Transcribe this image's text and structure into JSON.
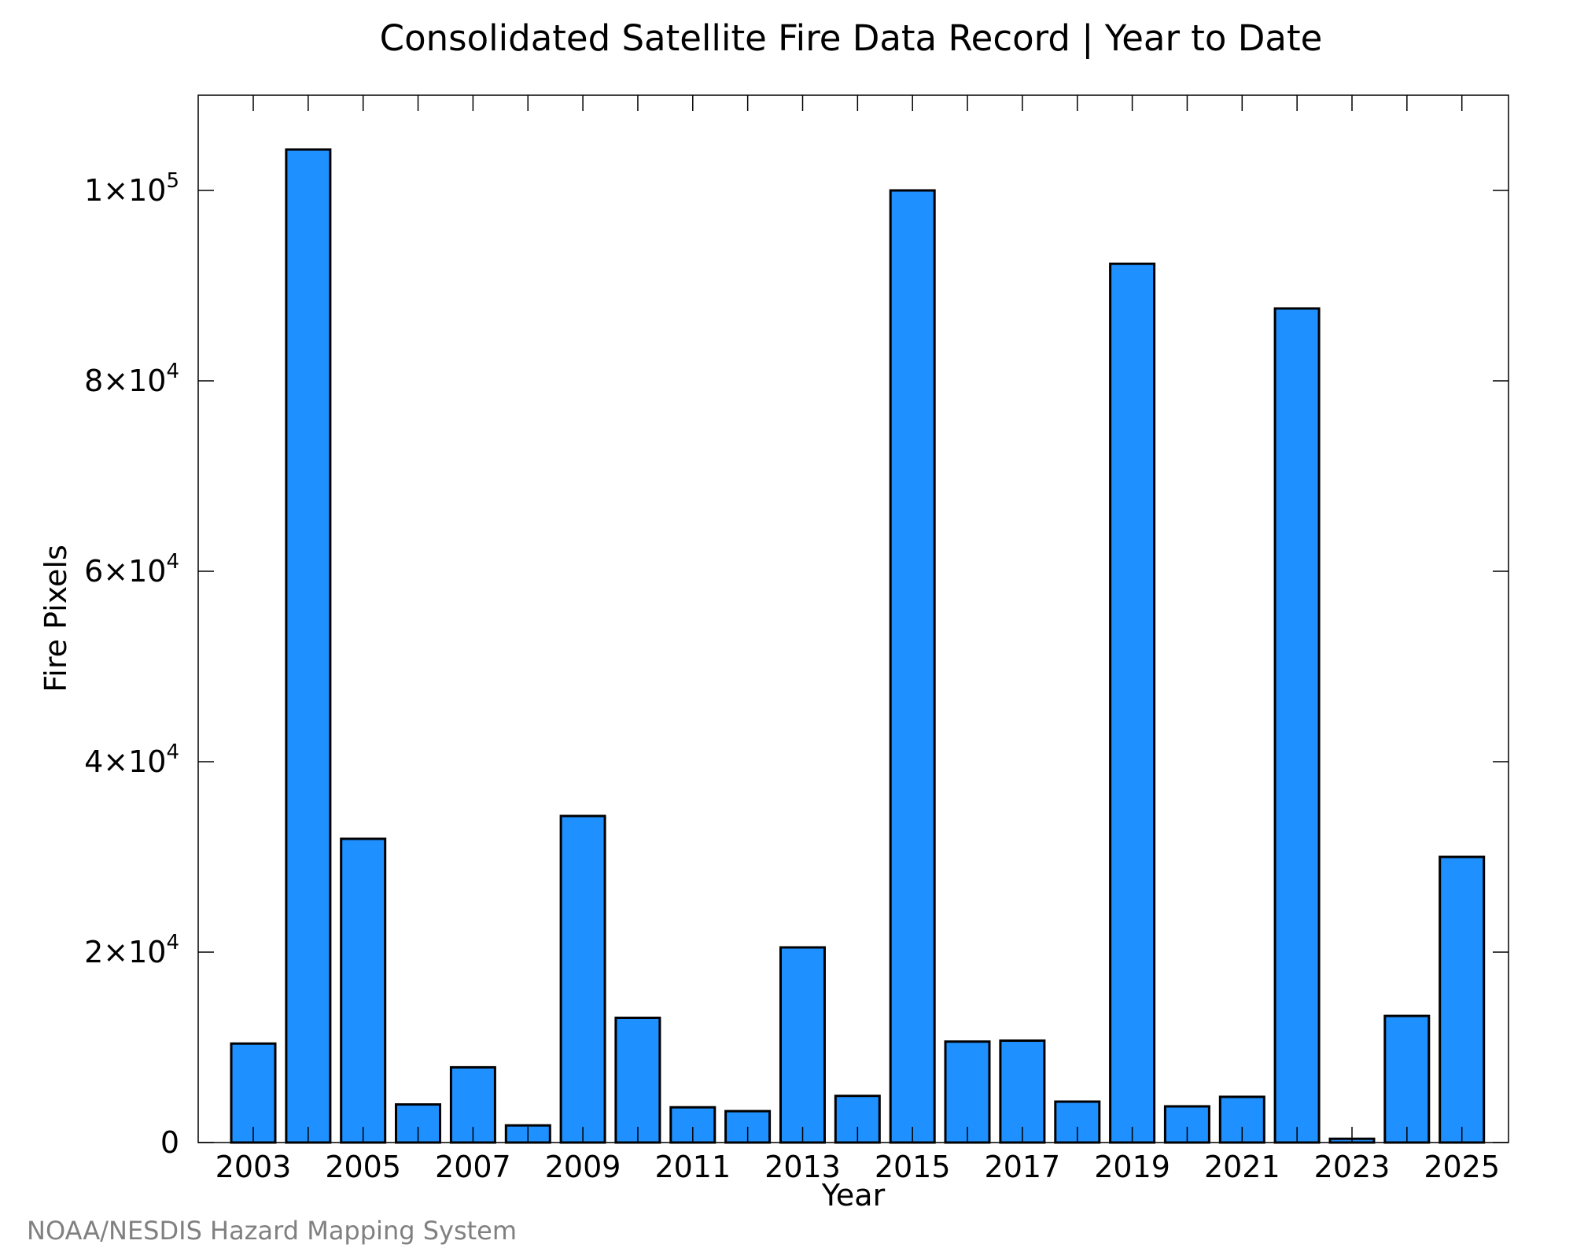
{
  "chart_data": {
    "type": "bar",
    "title": "Consolidated Satellite Fire Data Record | Year to Date",
    "xlabel": "Year",
    "ylabel": "Fire Pixels",
    "footer": "NOAA/NESDIS Hazard Mapping System",
    "categories": [
      "2003",
      "2004",
      "2005",
      "2006",
      "2007",
      "2008",
      "2009",
      "2010",
      "2011",
      "2012",
      "2013",
      "2014",
      "2015",
      "2016",
      "2017",
      "2018",
      "2019",
      "2020",
      "2021",
      "2022",
      "2023",
      "2024",
      "2025"
    ],
    "x_tick_labels": [
      "2003",
      "2005",
      "2007",
      "2009",
      "2011",
      "2013",
      "2015",
      "2017",
      "2019",
      "2021",
      "2023",
      "2025"
    ],
    "values": [
      10400,
      104300,
      31900,
      4000,
      7900,
      1800,
      34300,
      13100,
      3700,
      3300,
      20500,
      4900,
      100000,
      10600,
      10700,
      4300,
      92300,
      3800,
      4800,
      87600,
      400,
      13300,
      30000
    ],
    "ylim": [
      0,
      110000
    ],
    "y_ticks": [
      {
        "value": 0,
        "mantissa": "0",
        "exponent": ""
      },
      {
        "value": 20000,
        "mantissa": "2×10",
        "exponent": "4"
      },
      {
        "value": 40000,
        "mantissa": "4×10",
        "exponent": "4"
      },
      {
        "value": 60000,
        "mantissa": "6×10",
        "exponent": "4"
      },
      {
        "value": 80000,
        "mantissa": "8×10",
        "exponent": "4"
      },
      {
        "value": 100000,
        "mantissa": "1×10",
        "exponent": "5"
      }
    ],
    "bar_color": "#1e90ff",
    "grid": false,
    "legend": "none"
  }
}
